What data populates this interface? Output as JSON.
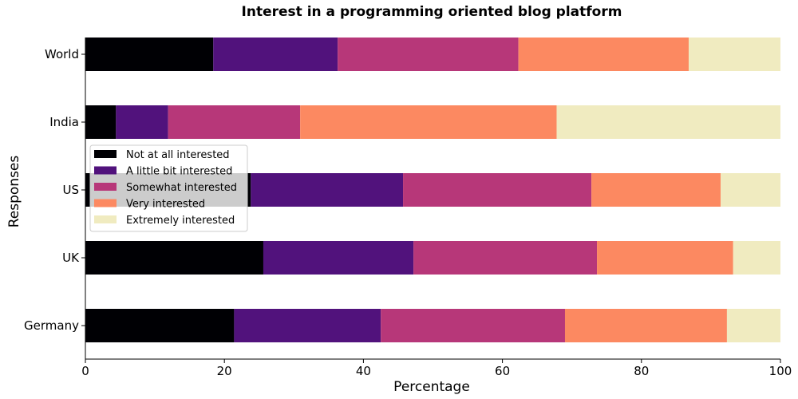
{
  "chart_data": {
    "type": "bar",
    "orientation": "horizontal",
    "stacked": true,
    "title": "Interest in a programming oriented blog platform",
    "xlabel": "Percentage",
    "ylabel": "Responses",
    "xlim": [
      0,
      100
    ],
    "xticks": [
      0,
      20,
      40,
      60,
      80,
      100
    ],
    "grid": false,
    "legend_position": "center-left",
    "categories": [
      "World",
      "India",
      "US",
      "UK",
      "Germany"
    ],
    "series": [
      {
        "name": "Not at all interested",
        "color": "#000004",
        "values": [
          18.4,
          4.4,
          23.8,
          25.6,
          21.4
        ]
      },
      {
        "name": "A little bit interested",
        "color": "#51127c",
        "values": [
          17.9,
          7.5,
          21.9,
          21.6,
          21.1
        ]
      },
      {
        "name": "Somewhat interested",
        "color": "#b73779",
        "values": [
          26.0,
          19.0,
          27.1,
          26.4,
          26.5
        ]
      },
      {
        "name": "Very interested",
        "color": "#fc8961",
        "values": [
          24.5,
          36.9,
          18.6,
          19.6,
          23.3
        ]
      },
      {
        "name": "Extremely interested",
        "color": "#f0ebc0",
        "values": [
          13.2,
          32.2,
          8.6,
          6.8,
          7.7
        ]
      }
    ]
  }
}
